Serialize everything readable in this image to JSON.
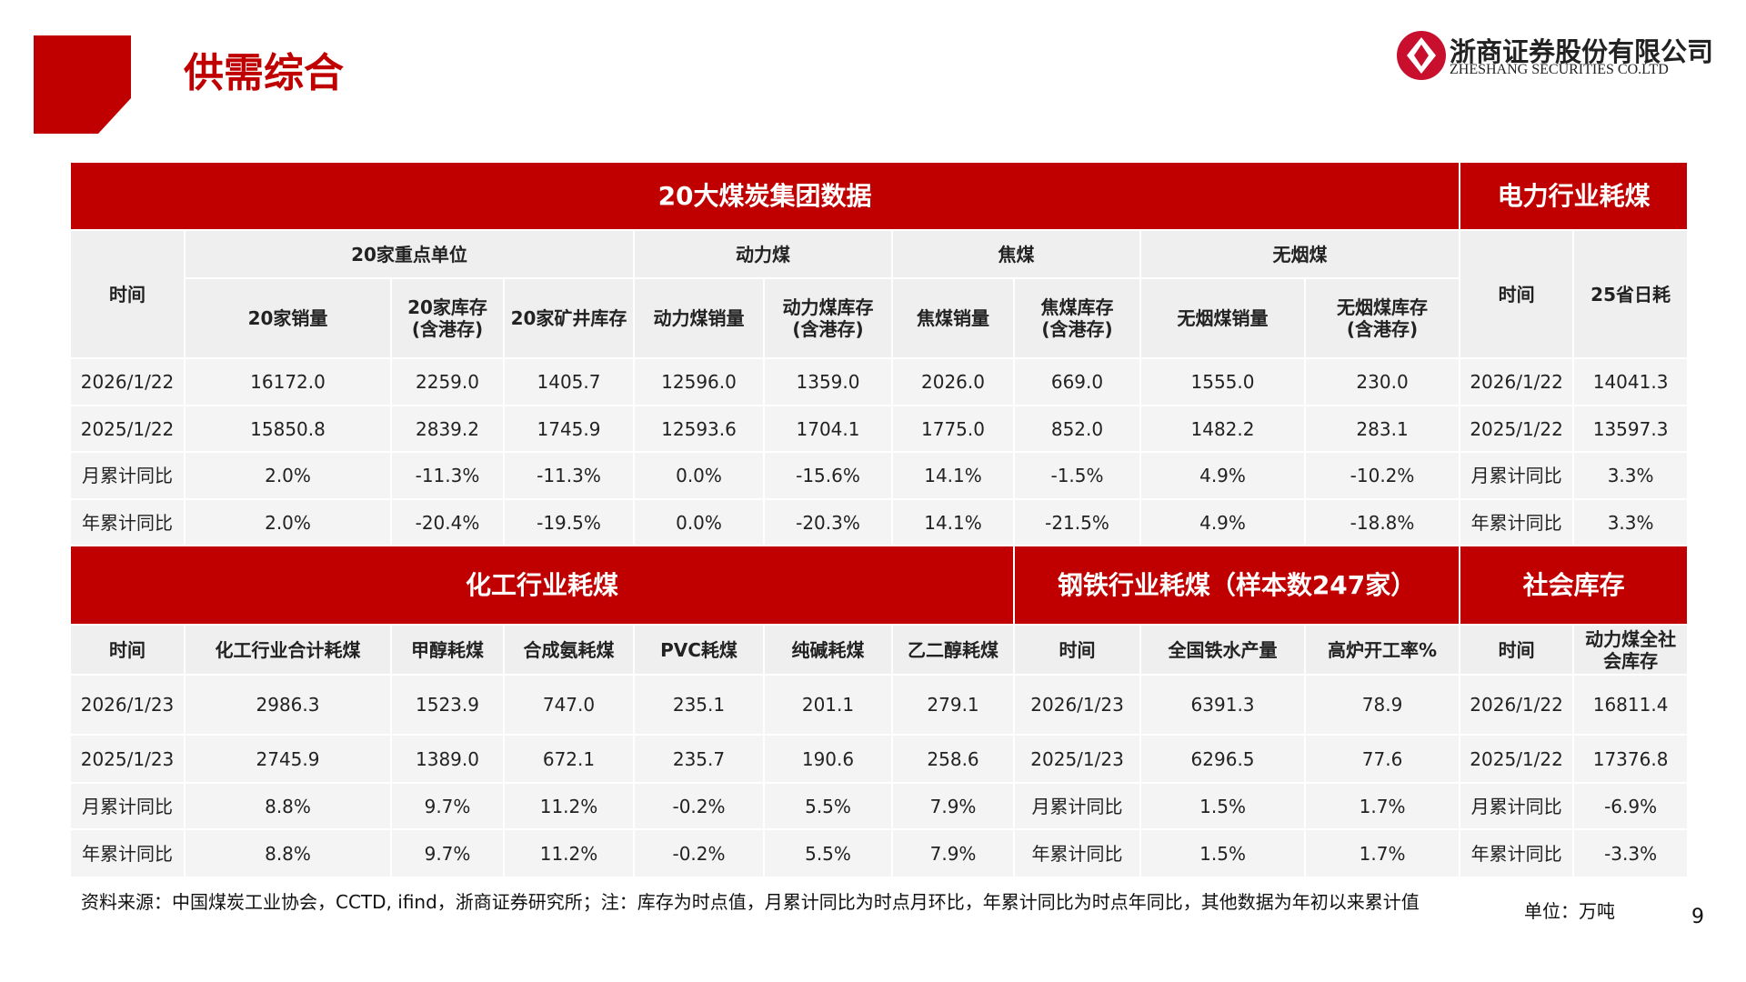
{
  "header": {
    "title": "供需综合",
    "logo_cn": "浙商证券股份有限公司",
    "logo_en": "ZHESHANG SECURITIES CO.LTD"
  },
  "table1": {
    "title_left": "20大煤炭集团数据",
    "title_right": "电力行业耗煤",
    "groups": [
      "20家重点单位",
      "动力煤",
      "焦煤",
      "无烟煤"
    ],
    "columns": [
      "时间",
      "20家销量",
      "20家库存\n(含港存)",
      "20家矿井库存",
      "动力煤销量",
      "动力煤库存\n(含港存)",
      "焦煤销量",
      "焦煤库存\n(含港存)",
      "无烟煤销量",
      "无烟煤库存\n(含港存)",
      "时间",
      "25省日耗"
    ],
    "rows": [
      [
        "2026/1/22",
        "16172.0",
        "2259.0",
        "1405.7",
        "12596.0",
        "1359.0",
        "2026.0",
        "669.0",
        "1555.0",
        "230.0",
        "2026/1/22",
        "14041.3"
      ],
      [
        "2025/1/22",
        "15850.8",
        "2839.2",
        "1745.9",
        "12593.6",
        "1704.1",
        "1775.0",
        "852.0",
        "1482.2",
        "283.1",
        "2025/1/22",
        "13597.3"
      ],
      [
        "月累计同比",
        "2.0%",
        "-11.3%",
        "-11.3%",
        "0.0%",
        "-15.6%",
        "14.1%",
        "-1.5%",
        "4.9%",
        "-10.2%",
        "月累计同比",
        "3.3%"
      ],
      [
        "年累计同比",
        "2.0%",
        "-20.4%",
        "-19.5%",
        "0.0%",
        "-20.3%",
        "14.1%",
        "-21.5%",
        "4.9%",
        "-18.8%",
        "年累计同比",
        "3.3%"
      ]
    ]
  },
  "table2": {
    "titles": [
      "化工行业耗煤",
      "钢铁行业耗煤（样本数247家）",
      "社会库存"
    ],
    "columns": [
      "时间",
      "化工行业合计耗煤",
      "甲醇耗煤",
      "合成氨耗煤",
      "PVC耗煤",
      "纯碱耗煤",
      "乙二醇耗煤",
      "时间",
      "全国铁水产量",
      "高炉开工率%",
      "时间",
      "动力煤全社\n会库存"
    ],
    "rows": [
      [
        "2026/1/23",
        "2986.3",
        "1523.9",
        "747.0",
        "235.1",
        "201.1",
        "279.1",
        "2026/1/23",
        "6391.3",
        "78.9",
        "2026/1/22",
        "16811.4"
      ],
      [
        "2025/1/23",
        "2745.9",
        "1389.0",
        "672.1",
        "235.7",
        "190.6",
        "258.6",
        "2025/1/23",
        "6296.5",
        "77.6",
        "2025/1/22",
        "17376.8"
      ],
      [
        "月累计同比",
        "8.8%",
        "9.7%",
        "11.2%",
        "-0.2%",
        "5.5%",
        "7.9%",
        "月累计同比",
        "1.5%",
        "1.7%",
        "月累计同比",
        "-6.9%"
      ],
      [
        "年累计同比",
        "8.8%",
        "9.7%",
        "11.2%",
        "-0.2%",
        "5.5%",
        "7.9%",
        "年累计同比",
        "1.5%",
        "1.7%",
        "年累计同比",
        "-3.3%"
      ]
    ]
  },
  "footer": {
    "source": "资料来源：中国煤炭工业协会，CCTD, ifind，浙商证券研究所；注：库存为时点值，月累计同比为时点月环比，年累计同比为时点年同比，其他数据为年初以来累计值",
    "unit": "单位：万吨",
    "page": "9"
  }
}
